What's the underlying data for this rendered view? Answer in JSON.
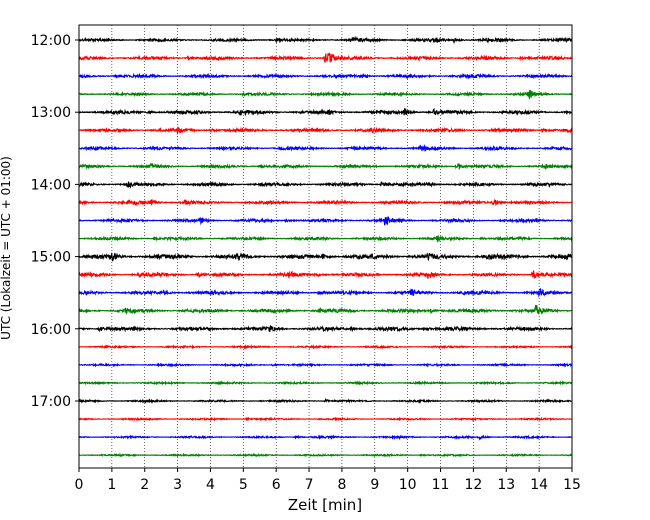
{
  "chart_data": {
    "type": "line",
    "subtype": "helicorder",
    "title": "",
    "xlabel": "Zeit  [min]",
    "ylabel": "UTC (Lokalzeit = UTC + 01:00)",
    "xlim": [
      0,
      15
    ],
    "x_ticks": [
      "0",
      "1",
      "2",
      "3",
      "4",
      "5",
      "6",
      "7",
      "8",
      "9",
      "10",
      "11",
      "12",
      "13",
      "14",
      "15"
    ],
    "y_tick_labels": [
      "12:00",
      "13:00",
      "14:00",
      "15:00",
      "16:00",
      "17:00"
    ],
    "trace_interval_min": 15,
    "trace_start_times": [
      "12:00",
      "12:15",
      "12:30",
      "12:45",
      "13:00",
      "13:15",
      "13:30",
      "13:45",
      "14:00",
      "14:15",
      "14:30",
      "14:45",
      "15:00",
      "15:15",
      "15:30",
      "15:45",
      "16:00",
      "16:15",
      "16:30",
      "16:45",
      "17:00",
      "17:15",
      "17:30",
      "17:45"
    ],
    "trace_colors": [
      "#000000",
      "#ff0000",
      "#0000ff",
      "#008000"
    ],
    "grid": "vertical dotted at every minute",
    "series": [
      {
        "time": "12:00",
        "noise": 1.4,
        "events": [
          [
            8.3,
            3.5
          ],
          [
            11.4,
            2.5
          ],
          [
            6.0,
            1.5
          ],
          [
            12.4,
            1.6
          ],
          [
            10.9,
            1.6
          ]
        ]
      },
      {
        "time": "12:15",
        "noise": 1.6,
        "events": [
          [
            7.5,
            9.0
          ],
          [
            7.6,
            3.0
          ],
          [
            3.3,
            1.3
          ],
          [
            13.4,
            1.3
          ]
        ]
      },
      {
        "time": "12:30",
        "noise": 1.5,
        "events": [
          [
            8.6,
            2.0
          ],
          [
            1.1,
            1.3
          ],
          [
            11.8,
            1.2
          ]
        ]
      },
      {
        "time": "12:45",
        "noise": 1.3,
        "events": [
          [
            13.7,
            4.0
          ],
          [
            5.0,
            1.2
          ]
        ]
      },
      {
        "time": "13:00",
        "noise": 1.7,
        "events": [
          [
            4.9,
            3.5
          ],
          [
            9.9,
            3.8
          ],
          [
            2.1,
            1.6
          ],
          [
            7.6,
            1.7
          ],
          [
            10.8,
            2.5
          ]
        ]
      },
      {
        "time": "13:15",
        "noise": 1.6,
        "events": [
          [
            3.0,
            2.6
          ],
          [
            4.0,
            1.8
          ],
          [
            14.1,
            1.6
          ],
          [
            8.9,
            1.3
          ]
        ]
      },
      {
        "time": "13:30",
        "noise": 1.4,
        "events": [
          [
            10.4,
            5.0
          ],
          [
            6.1,
            1.5
          ],
          [
            12.6,
            1.3
          ]
        ]
      },
      {
        "time": "13:45",
        "noise": 1.4,
        "events": [
          [
            11.5,
            5.0
          ],
          [
            2.2,
            2.5
          ],
          [
            5.5,
            1.5
          ],
          [
            14.2,
            1.3
          ]
        ]
      },
      {
        "time": "14:00",
        "noise": 1.5,
        "events": [
          [
            1.5,
            2.5
          ],
          [
            9.2,
            2.5
          ],
          [
            10.6,
            2.0
          ],
          [
            5.5,
            1.4
          ],
          [
            13.7,
            1.2
          ]
        ]
      },
      {
        "time": "14:15",
        "noise": 1.5,
        "events": [
          [
            2.2,
            2.8
          ],
          [
            12.6,
            5.0
          ],
          [
            3.2,
            2.0
          ],
          [
            1.7,
            1.8
          ]
        ]
      },
      {
        "time": "14:30",
        "noise": 1.4,
        "events": [
          [
            9.3,
            5.5
          ],
          [
            3.7,
            2.3
          ],
          [
            6.3,
            1.3
          ],
          [
            13.9,
            1.3
          ]
        ]
      },
      {
        "time": "14:45",
        "noise": 1.3,
        "events": [
          [
            10.9,
            4.0
          ],
          [
            2.3,
            1.2
          ],
          [
            12.2,
            1.2
          ]
        ]
      },
      {
        "time": "15:00",
        "noise": 2.2,
        "events": [
          [
            1.0,
            3.5
          ],
          [
            4.8,
            2.8
          ],
          [
            7.4,
            2.6
          ],
          [
            10.6,
            2.5
          ],
          [
            12.4,
            2.2
          ]
        ]
      },
      {
        "time": "15:15",
        "noise": 1.6,
        "events": [
          [
            10.6,
            3.6
          ],
          [
            13.8,
            5.0
          ],
          [
            3.6,
            2.8
          ],
          [
            6.4,
            2.5
          ],
          [
            1.8,
            1.5
          ],
          [
            7.2,
            2.0
          ]
        ]
      },
      {
        "time": "15:30",
        "noise": 1.6,
        "events": [
          [
            14.0,
            3.3
          ],
          [
            2.6,
            1.7
          ],
          [
            7.3,
            2.0
          ],
          [
            10.1,
            2.1
          ],
          [
            11.7,
            1.5
          ]
        ]
      },
      {
        "time": "15:45",
        "noise": 1.7,
        "events": [
          [
            13.9,
            5.5
          ],
          [
            1.4,
            1.8
          ],
          [
            7.3,
            1.6
          ],
          [
            10.7,
            2.0
          ]
        ]
      },
      {
        "time": "16:00",
        "noise": 1.8,
        "events": [
          [
            0.6,
            2.4
          ],
          [
            5.8,
            2.6
          ],
          [
            10.5,
            2.3
          ],
          [
            8.3,
            1.5
          ]
        ]
      },
      {
        "time": "16:15",
        "noise": 0.9,
        "events": []
      },
      {
        "time": "16:30",
        "noise": 0.9,
        "events": [
          [
            5.9,
            1.2
          ]
        ]
      },
      {
        "time": "16:45",
        "noise": 0.9,
        "events": []
      },
      {
        "time": "17:00",
        "noise": 0.9,
        "events": [
          [
            7.5,
            1.2
          ]
        ]
      },
      {
        "time": "17:15",
        "noise": 0.8,
        "events": [
          [
            5.1,
            1.0
          ]
        ]
      },
      {
        "time": "17:30",
        "noise": 0.9,
        "events": [
          [
            12.2,
            1.8
          ],
          [
            6.6,
            1.3
          ]
        ]
      },
      {
        "time": "17:45",
        "noise": 0.8,
        "events": [
          [
            10.4,
            1.0
          ]
        ]
      }
    ]
  }
}
